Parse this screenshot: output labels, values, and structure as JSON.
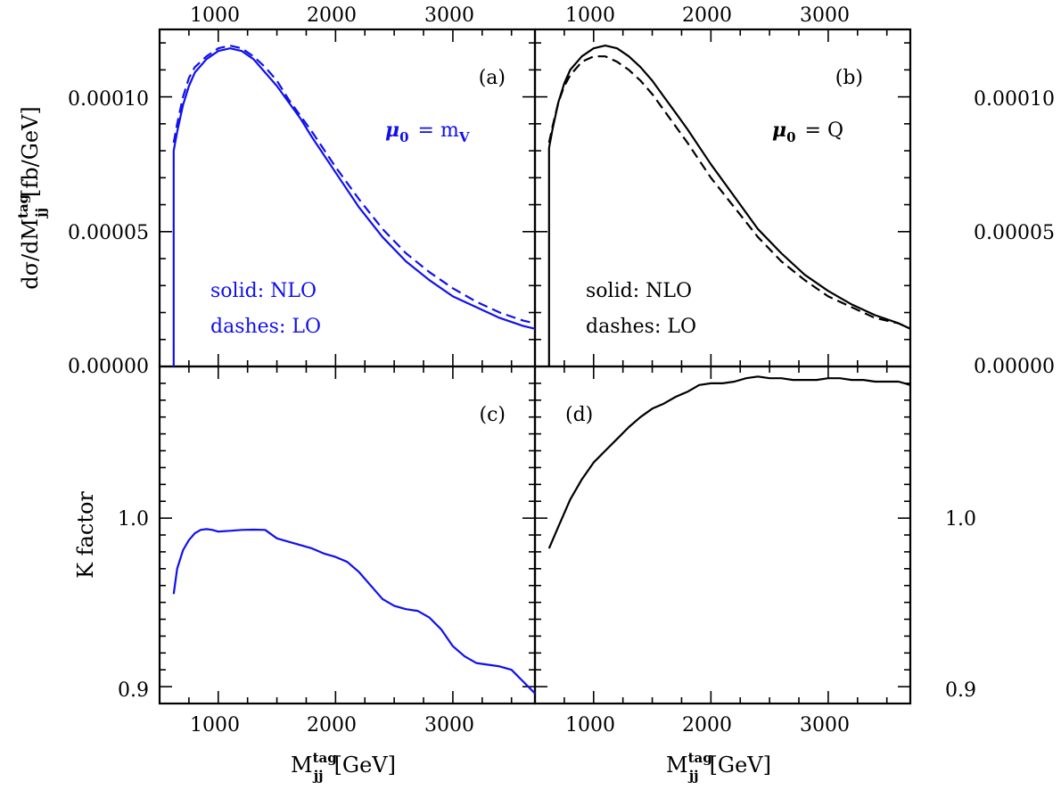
{
  "colors": {
    "blue": "#1010ee",
    "black": "#000000"
  },
  "axes": {
    "x_ticks": [
      "1000",
      "2000",
      "3000"
    ],
    "x_tick_values": [
      1000,
      2000,
      3000
    ],
    "xlim": [
      500,
      3700
    ],
    "xlabel_main": "M",
    "xlabel_sup": "tag",
    "xlabel_sub": "jj",
    "xlabel_unit": "[GeV]",
    "top_y_ticks": [
      "0.00010",
      "0.00005",
      "0.00000"
    ],
    "top_y_tick_values": [
      0.0001,
      5e-05,
      0.0
    ],
    "top_ylim": [
      0,
      0.000125
    ],
    "top_ylabel_pre": "dσ/dM",
    "top_ylabel_sup": "tag",
    "top_ylabel_sub": "jj",
    "top_ylabel_post": "[fb/GeV]",
    "bottom_y_ticks": [
      "1.0",
      "0.9"
    ],
    "bottom_y_tick_values": [
      1.0,
      0.9
    ],
    "bottom_ylim": [
      0.89,
      1.09
    ],
    "bottom_ylabel": "K factor"
  },
  "panels": {
    "a": {
      "label": "(a)",
      "mu_prefix": "μ",
      "mu_sub": "0",
      "mu_eq": "= m",
      "mu_val_sub": "V",
      "legend_solid": "solid: NLO",
      "legend_dashes": "dashes: LO"
    },
    "b": {
      "label": "(b)",
      "mu_prefix": "μ",
      "mu_sub": "0",
      "mu_eq": "= Q",
      "legend_solid": "solid: NLO",
      "legend_dashes": "dashes: LO"
    },
    "c": {
      "label": "(c)"
    },
    "d": {
      "label": "(d)"
    }
  },
  "chart_data": [
    {
      "panel": "a",
      "type": "line",
      "xlim": [
        500,
        3700
      ],
      "ylim": [
        0,
        0.000125
      ],
      "series": [
        {
          "name": "NLO",
          "style": "solid",
          "color": "#1010ee",
          "x": [
            620,
            620,
            650,
            700,
            750,
            800,
            900,
            1000,
            1100,
            1200,
            1300,
            1400,
            1500,
            1600,
            1700,
            1800,
            2000,
            2200,
            2400,
            2600,
            2800,
            3000,
            3200,
            3400,
            3600,
            3700
          ],
          "y": [
            0.0,
            8e-05,
            8.7e-05,
            9.7e-05,
            0.000104,
            0.000109,
            0.000114,
            0.000117,
            0.000118,
            0.000117,
            0.000114,
            0.000109,
            0.000104,
            9.8e-05,
            9.2e-05,
            8.5e-05,
            7.2e-05,
            5.9e-05,
            4.8e-05,
            3.9e-05,
            3.2e-05,
            2.6e-05,
            2.2e-05,
            1.8e-05,
            1.5e-05,
            1.4e-05
          ]
        },
        {
          "name": "LO",
          "style": "dashed",
          "color": "#1010ee",
          "x": [
            620,
            650,
            700,
            750,
            800,
            900,
            1000,
            1100,
            1200,
            1300,
            1400,
            1500,
            1600,
            1700,
            1800,
            2000,
            2200,
            2400,
            2600,
            2800,
            3000,
            3200,
            3400,
            3600,
            3700
          ],
          "y": [
            8.3e-05,
            9e-05,
            0.0001,
            0.000107,
            0.000111,
            0.000115,
            0.000118,
            0.000119,
            0.000118,
            0.000115,
            0.000111,
            0.000106,
            9.9e-05,
            9.3e-05,
            8.7e-05,
            7.4e-05,
            6.2e-05,
            5.1e-05,
            4.2e-05,
            3.5e-05,
            2.9e-05,
            2.4e-05,
            2e-05,
            1.7e-05,
            1.6e-05
          ]
        }
      ]
    },
    {
      "panel": "b",
      "type": "line",
      "xlim": [
        500,
        3700
      ],
      "ylim": [
        0,
        0.000125
      ],
      "series": [
        {
          "name": "NLO",
          "style": "solid",
          "color": "#000000",
          "x": [
            620,
            620,
            650,
            700,
            750,
            800,
            900,
            1000,
            1100,
            1200,
            1300,
            1400,
            1500,
            1600,
            1700,
            1800,
            2000,
            2200,
            2400,
            2600,
            2800,
            3000,
            3200,
            3400,
            3600,
            3700
          ],
          "y": [
            0.0,
            8.1e-05,
            8.8e-05,
            9.8e-05,
            0.000105,
            0.00011,
            0.000115,
            0.000118,
            0.000119,
            0.000118,
            0.000115,
            0.000111,
            0.000106,
            0.0001,
            9.4e-05,
            8.8e-05,
            7.5e-05,
            6.3e-05,
            5.1e-05,
            4.2e-05,
            3.4e-05,
            2.8e-05,
            2.3e-05,
            1.9e-05,
            1.6e-05,
            1.4e-05
          ]
        },
        {
          "name": "LO",
          "style": "dashed",
          "color": "#000000",
          "x": [
            620,
            650,
            700,
            750,
            800,
            900,
            1000,
            1100,
            1200,
            1300,
            1400,
            1500,
            1600,
            1700,
            1800,
            2000,
            2200,
            2400,
            2600,
            2800,
            3000,
            3200,
            3400,
            3600,
            3700
          ],
          "y": [
            8.3e-05,
            8.9e-05,
            9.8e-05,
            0.000104,
            0.000108,
            0.000113,
            0.000115,
            0.000115,
            0.000113,
            0.00011,
            0.000106,
            0.000101,
            9.5e-05,
            8.9e-05,
            8.3e-05,
            7e-05,
            5.9e-05,
            4.8e-05,
            3.9e-05,
            3.2e-05,
            2.6e-05,
            2.2e-05,
            1.8e-05,
            1.6e-05,
            1.4e-05
          ]
        }
      ]
    },
    {
      "panel": "c",
      "type": "line",
      "xlim": [
        500,
        3700
      ],
      "ylim": [
        0.89,
        1.09
      ],
      "series": [
        {
          "name": "K",
          "style": "solid",
          "color": "#1010ee",
          "x": [
            620,
            650,
            700,
            750,
            800,
            850,
            900,
            950,
            1000,
            1100,
            1200,
            1300,
            1400,
            1500,
            1600,
            1700,
            1800,
            1900,
            2000,
            2100,
            2200,
            2300,
            2400,
            2500,
            2600,
            2700,
            2800,
            2900,
            3000,
            3100,
            3200,
            3300,
            3400,
            3500,
            3600,
            3700
          ],
          "y": [
            0.955,
            0.97,
            0.981,
            0.987,
            0.991,
            0.993,
            0.9935,
            0.993,
            0.992,
            0.9925,
            0.993,
            0.9932,
            0.993,
            0.988,
            0.986,
            0.984,
            0.982,
            0.979,
            0.977,
            0.974,
            0.968,
            0.96,
            0.952,
            0.948,
            0.946,
            0.945,
            0.941,
            0.934,
            0.924,
            0.918,
            0.914,
            0.913,
            0.912,
            0.91,
            0.903,
            0.896
          ]
        }
      ]
    },
    {
      "panel": "d",
      "type": "line",
      "xlim": [
        500,
        3700
      ],
      "ylim": [
        0.89,
        1.09
      ],
      "series": [
        {
          "name": "K",
          "style": "solid",
          "color": "#000000",
          "x": [
            620,
            700,
            800,
            900,
            1000,
            1100,
            1200,
            1300,
            1400,
            1500,
            1600,
            1700,
            1800,
            1900,
            2000,
            2100,
            2200,
            2300,
            2400,
            2500,
            2600,
            2700,
            2800,
            2900,
            3000,
            3100,
            3200,
            3300,
            3400,
            3500,
            3600,
            3700
          ],
          "y": [
            0.982,
            0.995,
            1.011,
            1.023,
            1.033,
            1.04,
            1.047,
            1.054,
            1.06,
            1.065,
            1.068,
            1.072,
            1.075,
            1.079,
            1.08,
            1.08,
            1.081,
            1.083,
            1.084,
            1.083,
            1.083,
            1.082,
            1.082,
            1.082,
            1.083,
            1.083,
            1.082,
            1.082,
            1.081,
            1.081,
            1.081,
            1.079
          ]
        }
      ]
    }
  ]
}
